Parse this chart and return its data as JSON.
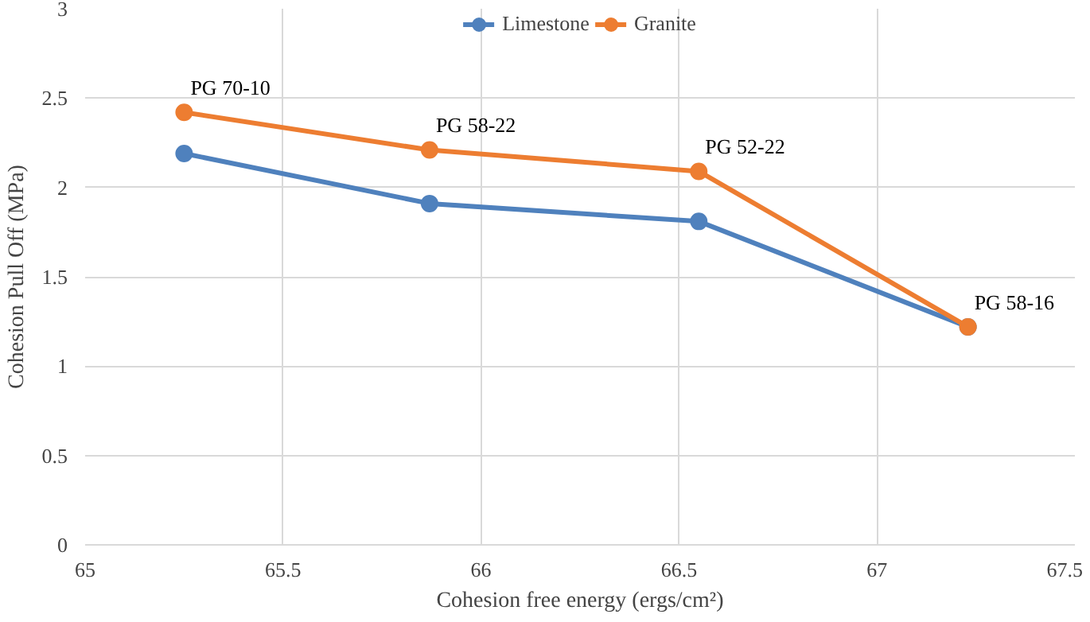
{
  "chart_data": {
    "type": "line",
    "xlabel": "Cohesion free energy (ergs/cm²)",
    "ylabel": "Cohesion Pull Off (MPa)",
    "x": [
      65.25,
      65.87,
      66.55,
      67.23
    ],
    "series": [
      {
        "name": "Limestone",
        "color": "#4f81bd",
        "values": [
          2.19,
          1.91,
          1.81,
          1.22
        ]
      },
      {
        "name": "Granite",
        "color": "#ed7d31",
        "values": [
          2.42,
          2.21,
          2.09,
          1.22
        ]
      }
    ],
    "annotations": [
      {
        "text": "PG 70-10",
        "x": 65.25,
        "y": 2.42
      },
      {
        "text": "PG 58-22",
        "x": 65.87,
        "y": 2.21
      },
      {
        "text": "PG 52-22",
        "x": 66.55,
        "y": 2.09
      },
      {
        "text": "PG 58-16",
        "x": 67.23,
        "y": 1.22
      }
    ],
    "xlim": [
      65,
      67.5
    ],
    "xticks": [
      65,
      65.5,
      66,
      66.5,
      67,
      67.5
    ],
    "ylim": [
      0,
      3
    ],
    "yticks": [
      0,
      0.5,
      1,
      1.5,
      2,
      2.5,
      3
    ],
    "grid": true,
    "legend": "top",
    "marker": "circle",
    "line_style": "solid"
  }
}
